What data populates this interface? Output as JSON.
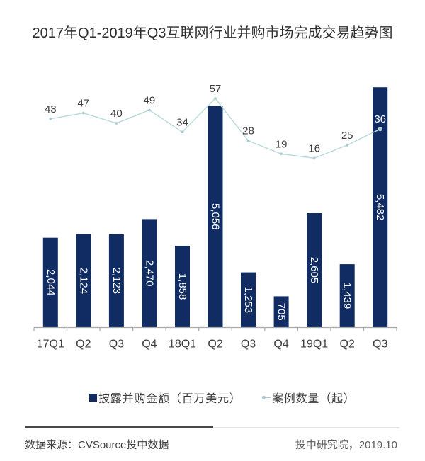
{
  "page": {
    "background": "#ffffff",
    "accent_navy": "#102c62",
    "accent_light_blue": "#b9d9db"
  },
  "title": "2017年Q1-2019年Q3互联网行业并购市场完成交易趋势图",
  "chart_data": {
    "type": "combo-bar-line",
    "title": "2017年Q1-2019年Q3互联网行业并购市场完成交易趋势图",
    "categories": [
      "17Q1",
      "Q2",
      "Q3",
      "Q4",
      "18Q1",
      "Q2",
      "Q3",
      "Q4",
      "19Q1",
      "Q2",
      "Q3"
    ],
    "series": [
      {
        "name": "披露并购金额（百万美元）",
        "type": "bar",
        "values": [
          2044,
          2124,
          2123,
          2470,
          1858,
          5056,
          1253,
          705,
          2605,
          1439,
          5482
        ],
        "color": "#102c62",
        "value_label_color": "#ffffff",
        "value_labels_rotated": true
      },
      {
        "name": "案例数量（起）",
        "type": "line",
        "values": [
          43,
          47,
          40,
          49,
          34,
          57,
          28,
          19,
          16,
          25,
          36
        ],
        "color": "#bedadd",
        "marker_color": "#aacdd4",
        "value_label_color": "#3d3d3d"
      }
    ],
    "xlabel": "",
    "ylabel": "",
    "grid": false,
    "legend_position": "bottom",
    "axis_color": "#a9a9a9",
    "category_label_color": "#3d3d3d",
    "bar_axis_range": [
      0,
      5500
    ],
    "line_axis_hint": "secondary axis, unlabeled"
  },
  "legend": {
    "amount": {
      "label": "披露并购金额（百万美元）",
      "swatch": "square",
      "color": "#102c62"
    },
    "count": {
      "label": "案例数量（起）",
      "swatch": "line",
      "color": "#a9ccd3"
    }
  },
  "footer": {
    "source": "数据来源：CVSource投中数据",
    "credit": "投中研究院，2019.10"
  }
}
